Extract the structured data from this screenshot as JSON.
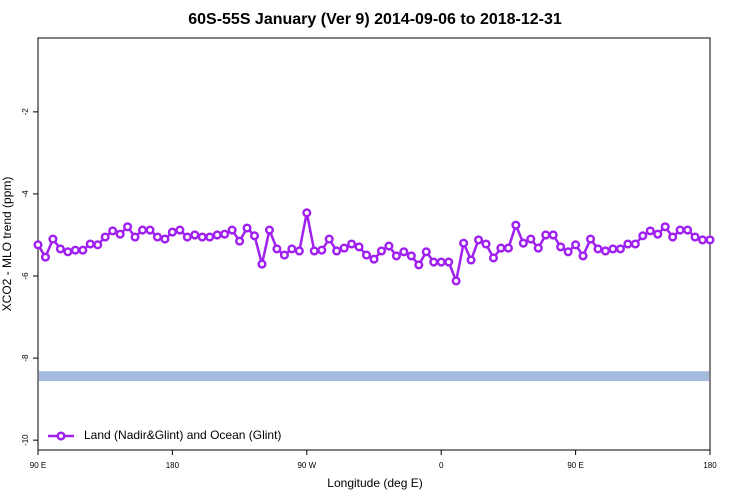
{
  "chart_data": {
    "type": "line",
    "title": "60S-55S January (Ver 9)   2014-09-06 to 2018-12-31",
    "x_label": "Longitude (deg E)",
    "y_label": "XCO2 - MLO trend (ppm)",
    "x": [
      90,
      95,
      100,
      105,
      110,
      115,
      120,
      125,
      130,
      135,
      140,
      145,
      150,
      155,
      160,
      165,
      170,
      175,
      180,
      185,
      190,
      195,
      200,
      205,
      210,
      215,
      220,
      225,
      230,
      235,
      240,
      245,
      250,
      255,
      260,
      265,
      270,
      275,
      280,
      285,
      290,
      295,
      300,
      305,
      310,
      315,
      320,
      325,
      330,
      335,
      340,
      345,
      350,
      355,
      360,
      365,
      370,
      375,
      380,
      385,
      390,
      395,
      400,
      405,
      410,
      415,
      420,
      425,
      430,
      435,
      440,
      445,
      450,
      455,
      460,
      465,
      470,
      475,
      480,
      485,
      490,
      495,
      500,
      505,
      510,
      515,
      520,
      525,
      530,
      535,
      540
    ],
    "series": [
      {
        "name": "Land (Nadir&Glint) and Ocean (Glint)",
        "color": "#a020f0",
        "values": [
          -5.24,
          -5.54,
          -5.1,
          -5.34,
          -5.41,
          -5.37,
          -5.37,
          -5.22,
          -5.24,
          -5.05,
          -4.9,
          -4.98,
          -4.8,
          -5.05,
          -4.88,
          -4.88,
          -5.05,
          -5.1,
          -4.93,
          -4.88,
          -5.05,
          -5.0,
          -5.05,
          -5.05,
          -5.0,
          -4.98,
          -4.88,
          -5.15,
          -4.83,
          -5.02,
          -5.71,
          -4.88,
          -5.34,
          -5.49,
          -5.34,
          -5.39,
          -4.46,
          -5.39,
          -5.37,
          -5.1,
          -5.39,
          -5.32,
          -5.22,
          -5.29,
          -5.49,
          -5.59,
          -5.39,
          -5.27,
          -5.51,
          -5.41,
          -5.51,
          -5.73,
          -5.41,
          -5.66,
          -5.66,
          -5.66,
          -6.12,
          -5.2,
          -5.61,
          -5.12,
          -5.22,
          -5.56,
          -5.32,
          -5.32,
          -4.76,
          -5.2,
          -5.1,
          -5.32,
          -5.0,
          -5.0,
          -5.29,
          -5.41,
          -5.24,
          -5.51,
          -5.1,
          -5.34,
          -5.39,
          -5.34,
          -5.34,
          -5.22,
          -5.22,
          -5.02,
          -4.9,
          -4.98,
          -4.8,
          -5.05,
          -4.88,
          -4.88,
          -5.05,
          -5.12,
          -5.12
        ]
      }
    ],
    "band": {
      "ylim": [
        -8.56,
        -8.32
      ],
      "color": "#a5bbdd"
    },
    "xlim": [
      90,
      540
    ],
    "xticks": [
      {
        "value": 90,
        "label": "90 E"
      },
      180,
      {
        "value": 270,
        "label": "90 W"
      },
      {
        "value": 360,
        "label": "0"
      },
      {
        "value": 450,
        "label": "90 E"
      },
      {
        "value": 540,
        "label": "180"
      }
    ],
    "ylim": [
      -10.24,
      -0.2
    ],
    "yticks": [
      -2,
      -4,
      -6,
      -8,
      -10
    ],
    "legend": "bottom-left"
  }
}
